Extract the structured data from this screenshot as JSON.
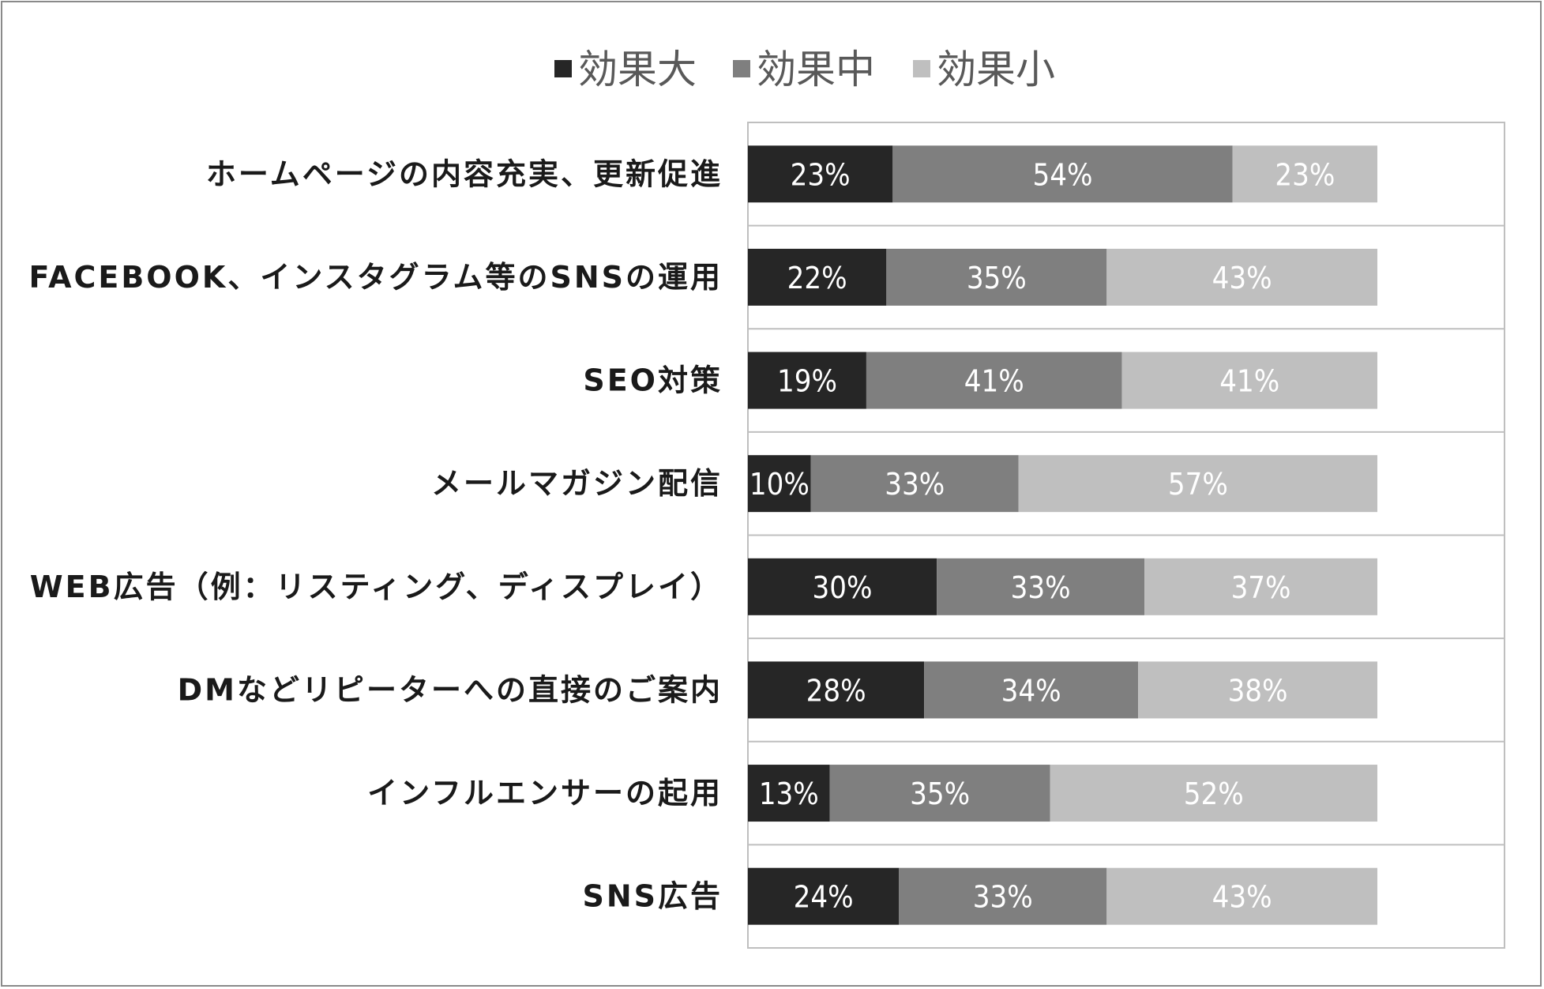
{
  "chart_data": {
    "type": "bar",
    "orientation": "horizontal",
    "stacked": "100%",
    "legend_position": "top",
    "grid": false,
    "categories": [
      "ホームページの内容充実、更新促進",
      "FACEBOOK、インスタグラム等のSNSの運用",
      "SEO対策",
      "メールマガジン配信",
      "WEB広告（例：リスティング、ディスプレイ）",
      "DMなどリピーターへの直接のご案内",
      "インフルエンサーの起用",
      "SNS広告"
    ],
    "series": [
      {
        "name": "効果大",
        "color": "#262626",
        "values": [
          23,
          22,
          19,
          10,
          30,
          28,
          13,
          24
        ]
      },
      {
        "name": "効果中",
        "color": "#7f7f7f",
        "values": [
          54,
          35,
          41,
          33,
          33,
          34,
          35,
          33
        ]
      },
      {
        "name": "効果小",
        "color": "#bfbfbf",
        "values": [
          23,
          43,
          41,
          57,
          37,
          38,
          52,
          43
        ]
      }
    ],
    "value_suffix": "%"
  }
}
